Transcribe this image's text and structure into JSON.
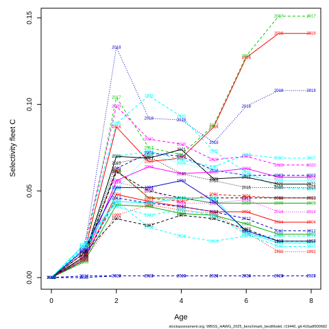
{
  "chart_data": {
    "type": "line",
    "title": "",
    "xlabel": "Age",
    "ylabel": "Selectivity fleet C",
    "xlim": [
      0,
      8
    ],
    "ylim": [
      0,
      0.15
    ],
    "x_ticks": [
      "0",
      "2",
      "4",
      "6",
      "8"
    ],
    "y_ticks": [
      "0.00",
      "0.05",
      "0.10",
      "0.15"
    ],
    "grid": false,
    "legend": "none",
    "x": [
      0,
      1,
      2,
      3,
      4,
      5,
      6,
      7,
      8
    ],
    "series": [
      {
        "label": "2017",
        "color": "#00cc00",
        "dash": "4,3",
        "values": [
          0,
          0.012,
          0.104,
          0.075,
          0.071,
          0.088,
          0.128,
          0.151,
          0.151
        ]
      },
      {
        "label": "2016",
        "color": "#ff0000",
        "dash": "",
        "values": [
          0,
          0.014,
          0.087,
          0.067,
          0.069,
          0.087,
          0.127,
          0.141,
          0.141
        ]
      },
      {
        "label": "2018",
        "color": "#0000cc",
        "dash": "1,2",
        "values": [
          0,
          0.015,
          0.133,
          0.092,
          0.091,
          0.078,
          0.099,
          0.108,
          0.108
        ]
      },
      {
        "label": "1995",
        "color": "#00ffff",
        "dash": "4,3",
        "values": [
          0,
          0.019,
          0.089,
          0.105,
          0.093,
          0.073,
          0.061,
          0.052,
          0.051
        ]
      },
      {
        "label": "2020",
        "color": "#ff00ff",
        "dash": "4,3",
        "values": [
          0,
          0.017,
          0.099,
          0.08,
          0.077,
          0.068,
          0.07,
          0.065,
          0.065
        ]
      },
      {
        "label": "2007",
        "color": "#00ffff",
        "dash": "4,3",
        "values": [
          0,
          0.011,
          0.07,
          0.073,
          0.068,
          0.064,
          0.071,
          0.069,
          0.069
        ]
      },
      {
        "label": "2021",
        "color": "#000000",
        "dash": "",
        "values": [
          0,
          0.012,
          0.07,
          0.069,
          0.074,
          0.057,
          0.058,
          0.054,
          0.054
        ]
      },
      {
        "label": "2003",
        "color": "#0000cc",
        "dash": "4,3",
        "values": [
          0,
          0.01,
          0.063,
          0.072,
          0.07,
          0.062,
          0.059,
          0.059,
          0.059
        ]
      },
      {
        "label": "2015",
        "color": "#000000",
        "dash": "1,2",
        "values": [
          0,
          0.012,
          0.066,
          0.07,
          0.06,
          0.056,
          0.052,
          0.052,
          0.052
        ]
      },
      {
        "label": "2008",
        "color": "#ff00ff",
        "dash": "",
        "values": [
          0,
          0.01,
          0.056,
          0.064,
          0.06,
          0.061,
          0.063,
          0.058,
          0.058
        ]
      },
      {
        "label": "2006",
        "color": "#00ffff",
        "dash": "1,2",
        "values": [
          0,
          0.01,
          0.051,
          0.071,
          0.066,
          0.062,
          0.059,
          0.056,
          0.056
        ]
      },
      {
        "label": "2009",
        "color": "#00aa00",
        "dash": "",
        "values": [
          0,
          0.011,
          0.062,
          0.046,
          0.046,
          0.043,
          0.043,
          0.043,
          0.043
        ]
      },
      {
        "label": "2001",
        "color": "#ff0000",
        "dash": "4,3",
        "values": [
          0,
          0.012,
          0.062,
          0.046,
          0.044,
          0.048,
          0.047,
          0.046,
          0.046
        ]
      },
      {
        "label": "2010",
        "color": "#000000",
        "dash": "4,3",
        "values": [
          0,
          0.012,
          0.061,
          0.05,
          0.046,
          0.046,
          0.046,
          0.046,
          0.046
        ]
      },
      {
        "label": "2014",
        "color": "#ff00ff",
        "dash": "1,2",
        "values": [
          0,
          0.011,
          0.055,
          0.051,
          0.043,
          0.043,
          0.045,
          0.038,
          0.038
        ]
      },
      {
        "label": "2004",
        "color": "#ff0000",
        "dash": "",
        "values": [
          0,
          0.01,
          0.048,
          0.044,
          0.041,
          0.038,
          0.038,
          0.032,
          0.032
        ]
      },
      {
        "label": "2012",
        "color": "#0000cc",
        "dash": "4,3",
        "values": [
          0,
          0.01,
          0.046,
          0.043,
          0.041,
          0.038,
          0.034,
          0.027,
          0.027
        ]
      },
      {
        "label": "1999",
        "color": "#00aa00",
        "dash": "",
        "values": [
          0,
          0.009,
          0.042,
          0.041,
          0.037,
          0.036,
          0.031,
          0.025,
          0.025
        ]
      },
      {
        "label": "1992",
        "color": "#ff0000",
        "dash": "1,2",
        "values": [
          0,
          0.01,
          0.036,
          0.042,
          0.039,
          0.037,
          0.026,
          0.015,
          0.015
        ]
      },
      {
        "label": "1996",
        "color": "#00ffff",
        "dash": "",
        "values": [
          0,
          0.019,
          0.044,
          0.043,
          0.046,
          0.046,
          0.026,
          0.02,
          0.02
        ]
      },
      {
        "label": "1993",
        "color": "#00ffff",
        "dash": "4,3",
        "values": [
          0,
          0.017,
          0.041,
          0.036,
          0.039,
          0.036,
          0.025,
          0.018,
          0.018
        ]
      },
      {
        "label": "1994",
        "color": "#0000cc",
        "dash": "",
        "values": [
          0,
          0.016,
          0.052,
          0.052,
          0.056,
          0.044,
          0.027,
          0.021,
          0.021
        ]
      },
      {
        "label": "1997",
        "color": "#000000",
        "dash": "4,3",
        "values": [
          0,
          0.014,
          0.034,
          0.03,
          0.036,
          0.034,
          0.028,
          0.021,
          0.021
        ]
      },
      {
        "label": "2019",
        "color": "#00ffff",
        "dash": "4,3",
        "values": [
          0,
          0.018,
          0.044,
          0.029,
          0.024,
          0.021,
          0.024,
          0.024,
          0.024
        ]
      },
      {
        "label": "2023",
        "color": "#0000cc",
        "dash": "4,3",
        "values": [
          0,
          0.0,
          0.001,
          0.001,
          0.001,
          0.001,
          0.001,
          0.001,
          0.001
        ]
      },
      {
        "label": "2024",
        "color": "#0000cc",
        "dash": "4,3",
        "values": [
          0,
          0.001,
          0.001,
          0.001,
          0.001,
          0.001,
          0.001,
          0.001,
          0.001
        ]
      }
    ]
  },
  "footer": "stockassessment.org, WBSS_HAWG_2025_benchmark_bestModel, r19440, git:416adf900682"
}
